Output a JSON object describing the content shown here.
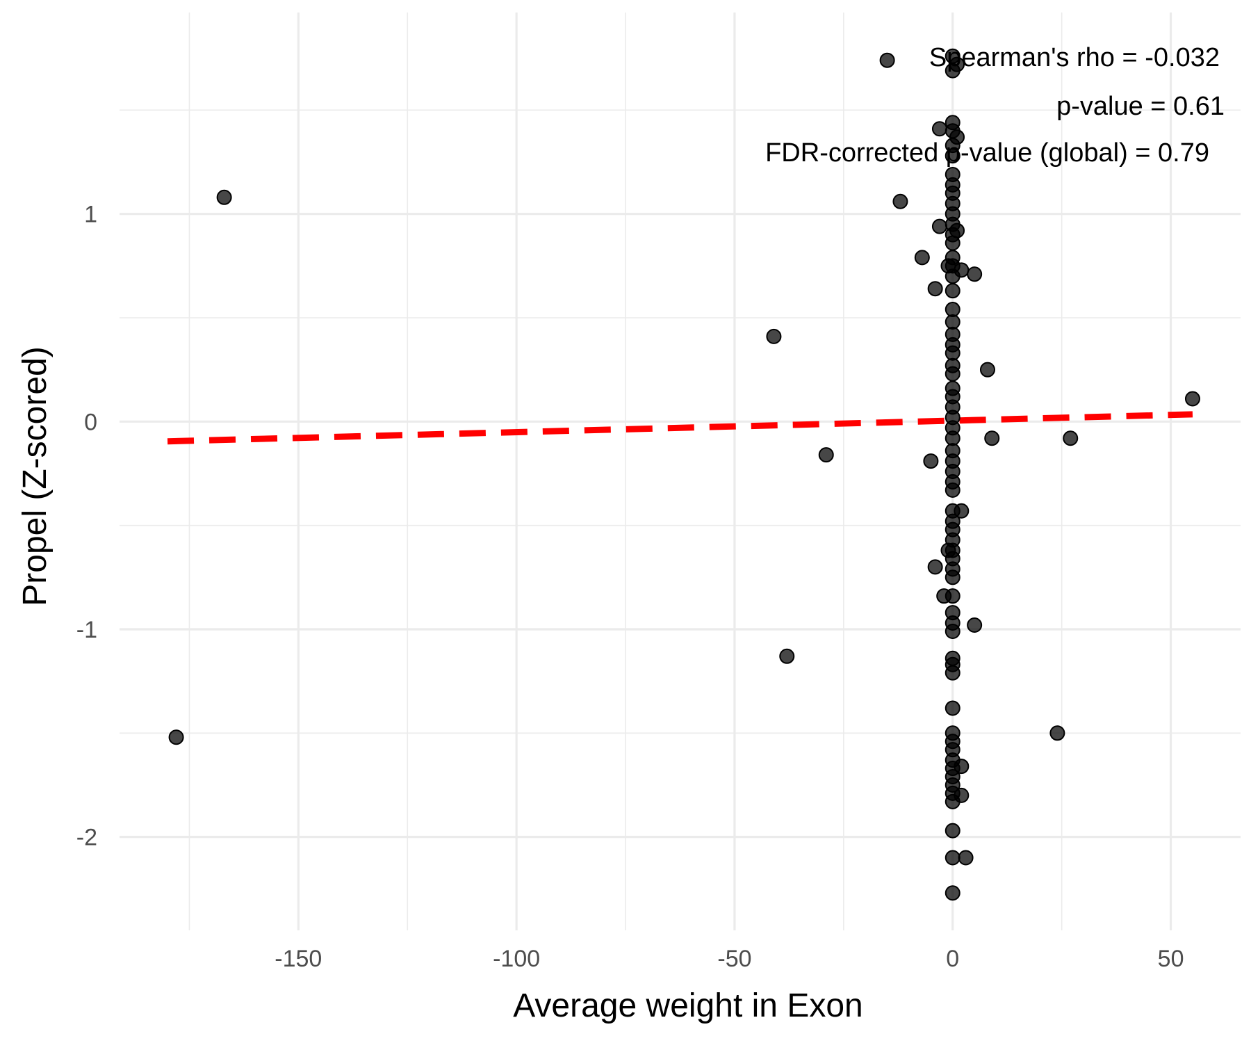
{
  "chart_data": {
    "type": "scatter",
    "xlabel": "Average weight in Exon",
    "ylabel": "Propel (Z-scored)",
    "xlim": [
      -191,
      66
    ],
    "ylim": [
      -2.45,
      1.97
    ],
    "x_ticks": [
      -150,
      -100,
      -50,
      0,
      50
    ],
    "x_tick_labels": [
      "-150",
      "-100",
      "-50",
      "0",
      "50"
    ],
    "y_ticks": [
      -2,
      -1,
      0,
      1
    ],
    "y_tick_labels": [
      "-2",
      "-1",
      "0",
      "1"
    ],
    "grid": true,
    "colors": {
      "points": "#000000",
      "trend": "#ff0000",
      "grid": "#ebebeb",
      "ticks": "#4d4d4d"
    },
    "annotations": [
      "Spearman's rho = -0.032",
      "p-value = 0.61",
      "FDR-corrected p-value (global) = 0.79"
    ],
    "trend_line": {
      "style": "dashed",
      "x": [
        -180,
        55
      ],
      "y": [
        -0.095,
        0.035
      ]
    },
    "points": [
      {
        "x": -178,
        "y": -1.52
      },
      {
        "x": -167,
        "y": 1.08
      },
      {
        "x": -41,
        "y": 0.41
      },
      {
        "x": -38,
        "y": -1.13
      },
      {
        "x": -29,
        "y": -0.16
      },
      {
        "x": -15,
        "y": 1.74
      },
      {
        "x": -12,
        "y": 1.06
      },
      {
        "x": -7,
        "y": 0.79
      },
      {
        "x": -5,
        "y": -0.19
      },
      {
        "x": -4,
        "y": 0.64
      },
      {
        "x": -4,
        "y": -0.7
      },
      {
        "x": -3,
        "y": 1.41
      },
      {
        "x": -3,
        "y": 0.94
      },
      {
        "x": -2,
        "y": -0.84
      },
      {
        "x": -1,
        "y": 0.75
      },
      {
        "x": -1,
        "y": -0.62
      },
      {
        "x": 1,
        "y": 1.72
      },
      {
        "x": 1,
        "y": 1.37
      },
      {
        "x": 1,
        "y": 0.92
      },
      {
        "x": 2,
        "y": 0.73
      },
      {
        "x": 2,
        "y": -0.43
      },
      {
        "x": 2,
        "y": -1.66
      },
      {
        "x": 2,
        "y": -1.8
      },
      {
        "x": 3,
        "y": -2.1
      },
      {
        "x": 5,
        "y": -0.98
      },
      {
        "x": 5,
        "y": 0.71
      },
      {
        "x": 8,
        "y": 0.25
      },
      {
        "x": 9,
        "y": -0.08
      },
      {
        "x": 24,
        "y": -1.5
      },
      {
        "x": 27,
        "y": -0.08
      },
      {
        "x": 55,
        "y": 0.11
      },
      {
        "x": 0,
        "y": 1.76
      },
      {
        "x": 0,
        "y": 1.69
      },
      {
        "x": 0,
        "y": 1.44
      },
      {
        "x": 0,
        "y": 1.4
      },
      {
        "x": 0,
        "y": 1.33
      },
      {
        "x": 0,
        "y": 1.28
      },
      {
        "x": 0,
        "y": 1.19
      },
      {
        "x": 0,
        "y": 1.14
      },
      {
        "x": 0,
        "y": 1.1
      },
      {
        "x": 0,
        "y": 1.05
      },
      {
        "x": 0,
        "y": 1.0
      },
      {
        "x": 0,
        "y": 0.95
      },
      {
        "x": 0,
        "y": 0.9
      },
      {
        "x": 0,
        "y": 0.86
      },
      {
        "x": 0,
        "y": 0.79
      },
      {
        "x": 0,
        "y": 0.75
      },
      {
        "x": 0,
        "y": 0.7
      },
      {
        "x": 0,
        "y": 0.63
      },
      {
        "x": 0,
        "y": 0.54
      },
      {
        "x": 0,
        "y": 0.48
      },
      {
        "x": 0,
        "y": 0.42
      },
      {
        "x": 0,
        "y": 0.37
      },
      {
        "x": 0,
        "y": 0.33
      },
      {
        "x": 0,
        "y": 0.27
      },
      {
        "x": 0,
        "y": 0.23
      },
      {
        "x": 0,
        "y": 0.16
      },
      {
        "x": 0,
        "y": 0.12
      },
      {
        "x": 0,
        "y": 0.07
      },
      {
        "x": 0,
        "y": 0.02
      },
      {
        "x": 0,
        "y": -0.03
      },
      {
        "x": 0,
        "y": -0.08
      },
      {
        "x": 0,
        "y": -0.14
      },
      {
        "x": 0,
        "y": -0.19
      },
      {
        "x": 0,
        "y": -0.24
      },
      {
        "x": 0,
        "y": -0.29
      },
      {
        "x": 0,
        "y": -0.33
      },
      {
        "x": 0,
        "y": -0.43
      },
      {
        "x": 0,
        "y": -0.48
      },
      {
        "x": 0,
        "y": -0.52
      },
      {
        "x": 0,
        "y": -0.57
      },
      {
        "x": 0,
        "y": -0.62
      },
      {
        "x": 0,
        "y": -0.66
      },
      {
        "x": 0,
        "y": -0.71
      },
      {
        "x": 0,
        "y": -0.75
      },
      {
        "x": 0,
        "y": -0.84
      },
      {
        "x": 0,
        "y": -0.92
      },
      {
        "x": 0,
        "y": -0.97
      },
      {
        "x": 0,
        "y": -1.01
      },
      {
        "x": 0,
        "y": -1.14
      },
      {
        "x": 0,
        "y": -1.17
      },
      {
        "x": 0,
        "y": -1.21
      },
      {
        "x": 0,
        "y": -1.38
      },
      {
        "x": 0,
        "y": -1.5
      },
      {
        "x": 0,
        "y": -1.54
      },
      {
        "x": 0,
        "y": -1.58
      },
      {
        "x": 0,
        "y": -1.63
      },
      {
        "x": 0,
        "y": -1.67
      },
      {
        "x": 0,
        "y": -1.71
      },
      {
        "x": 0,
        "y": -1.75
      },
      {
        "x": 0,
        "y": -1.79
      },
      {
        "x": 0,
        "y": -1.83
      },
      {
        "x": 0,
        "y": -1.97
      },
      {
        "x": 0,
        "y": -2.1
      },
      {
        "x": 0,
        "y": -2.27
      }
    ]
  }
}
